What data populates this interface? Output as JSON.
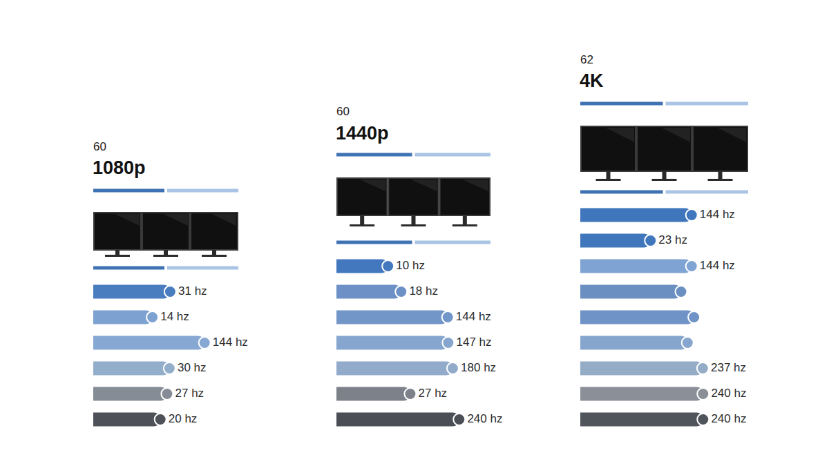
{
  "chart_data": [
    {
      "type": "bar",
      "title": "1080p",
      "subtitle": "60",
      "orientation": "horizontal",
      "log": "x",
      "xlim": [
        1,
        300
      ],
      "tick_labels": false,
      "grid": false,
      "data_labels": true,
      "marker": "circle",
      "categories": [
        null,
        null,
        null,
        null,
        null,
        null
      ],
      "values": [
        31,
        14,
        144,
        30,
        27,
        20
      ],
      "value_labels": [
        "31 hz",
        "14 hz",
        "144 hz",
        "30 hz",
        "27 hz",
        "20 hz"
      ],
      "colors": [
        "#4a7cc0",
        "#7da1d0",
        "#86a8d2",
        "#93aecb",
        "#868c95",
        "#4e5157"
      ]
    },
    {
      "type": "bar",
      "title": "1440p",
      "subtitle": "60",
      "orientation": "horizontal",
      "log": "x",
      "xlim": [
        1,
        300
      ],
      "tick_labels": false,
      "grid": false,
      "data_labels": true,
      "marker": "circle",
      "categories": [
        null,
        null,
        null,
        null,
        null,
        null,
        null
      ],
      "values": [
        10,
        18,
        144,
        147,
        180,
        27,
        240
      ],
      "value_labels": [
        "10 hz",
        "18 hz",
        "144 hz",
        "147 hz",
        "180 hz",
        "27 hz",
        "240 hz"
      ],
      "colors": [
        "#4378be",
        "#6d91c6",
        "#7296c8",
        "#86a6cf",
        "#93abca",
        "#7d8189",
        "#4b4e54"
      ]
    },
    {
      "type": "bar",
      "title": "4K",
      "subtitle": "62",
      "orientation": "horizontal",
      "log": "x",
      "xlim": [
        1,
        300
      ],
      "tick_labels": false,
      "grid": false,
      "data_labels": true,
      "marker": "circle",
      "categories": [
        null,
        null,
        null,
        null,
        null,
        null,
        null,
        null,
        null
      ],
      "values": [
        144,
        23,
        144,
        90,
        160,
        120,
        237,
        240,
        240
      ],
      "value_labels": [
        "144 hz",
        "23 hz",
        "144 hz",
        null,
        null,
        null,
        "237 hz",
        "240 hz",
        "240 hz"
      ],
      "colors": [
        "#3f76bc",
        "#3f76bc",
        "#7fa3d3",
        "#6a8fc0",
        "#6f93c6",
        "#86a6cd",
        "#95acc6",
        "#8a8f98",
        "#50545b"
      ]
    }
  ]
}
